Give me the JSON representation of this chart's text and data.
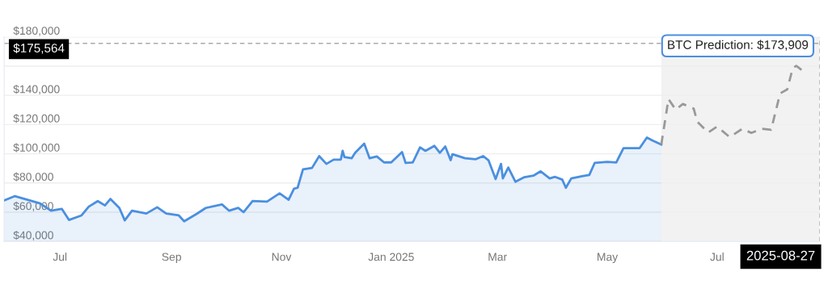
{
  "chart_data": {
    "type": "area",
    "xlim": [
      "2024-05-31",
      "2025-08-27"
    ],
    "ylim": [
      40000,
      180000
    ],
    "xticks": [
      {
        "value": "2024-07-01",
        "label": "Jul"
      },
      {
        "value": "2024-09-01",
        "label": "Sep"
      },
      {
        "value": "2024-11-01",
        "label": "Nov"
      },
      {
        "value": "2025-01-01",
        "label": "Jan 2025"
      },
      {
        "value": "2025-03-01",
        "label": "Mar"
      },
      {
        "value": "2025-05-01",
        "label": "May"
      },
      {
        "value": "2025-07-01",
        "label": "Jul"
      }
    ],
    "yticks": [
      {
        "value": 40000,
        "label": "$40,000"
      },
      {
        "value": 60000,
        "label": "$60,000"
      },
      {
        "value": 80000,
        "label": "$80,000"
      },
      {
        "value": 100000,
        "label": "$100,000"
      },
      {
        "value": 120000,
        "label": "$120,000"
      },
      {
        "value": 140000,
        "label": "$140,000"
      },
      {
        "value": 160000,
        "label": null
      },
      {
        "value": 180000,
        "label": "$180,000"
      }
    ],
    "grid": "y",
    "legend": false,
    "series": [
      {
        "color": "#4a8fe0",
        "line_style": "solid",
        "x": [
          "2024-05-31",
          "2024-06-06",
          "2024-06-13",
          "2024-06-20",
          "2024-06-26",
          "2024-07-02",
          "2024-07-06",
          "2024-07-13",
          "2024-07-17",
          "2024-07-22",
          "2024-07-26",
          "2024-07-29",
          "2024-08-03",
          "2024-08-06",
          "2024-08-10",
          "2024-08-18",
          "2024-08-24",
          "2024-08-29",
          "2024-09-05",
          "2024-09-08",
          "2024-09-15",
          "2024-09-20",
          "2024-09-29",
          "2024-10-03",
          "2024-10-08",
          "2024-10-11",
          "2024-10-16",
          "2024-10-24",
          "2024-10-31",
          "2024-11-05",
          "2024-11-08",
          "2024-11-10",
          "2024-11-13",
          "2024-11-18",
          "2024-11-22",
          "2024-11-26",
          "2024-11-30",
          "2024-12-04",
          "2024-12-05",
          "2024-12-06",
          "2024-12-10",
          "2024-12-12",
          "2024-12-17",
          "2024-12-20",
          "2024-12-24",
          "2024-12-28",
          "2025-01-01",
          "2025-01-07",
          "2025-01-09",
          "2025-01-13",
          "2025-01-17",
          "2025-01-20",
          "2025-01-25",
          "2025-01-28",
          "2025-01-31",
          "2025-02-03",
          "2025-02-04",
          "2025-02-11",
          "2025-02-17",
          "2025-02-21",
          "2025-02-24",
          "2025-02-28",
          "2025-03-03",
          "2025-03-04",
          "2025-03-07",
          "2025-03-11",
          "2025-03-16",
          "2025-03-21",
          "2025-03-25",
          "2025-03-30",
          "2025-04-02",
          "2025-04-06",
          "2025-04-08",
          "2025-04-11",
          "2025-04-17",
          "2025-04-21",
          "2025-04-24",
          "2025-05-01",
          "2025-05-06",
          "2025-05-10",
          "2025-05-19",
          "2025-05-23",
          "2025-05-26",
          "2025-05-31"
        ],
        "values": [
          68000,
          71000,
          68500,
          66000,
          61000,
          62300,
          54700,
          57800,
          63800,
          67600,
          64600,
          69100,
          62900,
          54400,
          61000,
          59100,
          63400,
          59100,
          57800,
          53800,
          58900,
          62900,
          65300,
          61000,
          63000,
          60000,
          67600,
          67200,
          72900,
          68500,
          76100,
          76700,
          89300,
          90300,
          98400,
          93100,
          96000,
          96000,
          102000,
          97800,
          96900,
          100700,
          106900,
          96900,
          98200,
          94100,
          94100,
          101200,
          93700,
          94100,
          104400,
          102000,
          105400,
          100700,
          105000,
          95600,
          99700,
          96900,
          96300,
          98400,
          95600,
          82700,
          93100,
          83100,
          90600,
          80800,
          84000,
          85000,
          88000,
          83100,
          84200,
          82300,
          76700,
          83100,
          84600,
          85500,
          93700,
          94400,
          94100,
          103900,
          103900,
          111100,
          109200,
          106300
        ]
      },
      {
        "type": "line",
        "color": "#999999",
        "line_style": "dashed",
        "x": [
          "2025-05-31",
          "2025-06-04",
          "2025-06-08",
          "2025-06-12",
          "2025-06-18",
          "2025-06-20",
          "2025-06-26",
          "2025-07-01",
          "2025-07-08",
          "2025-07-15",
          "2025-07-20",
          "2025-07-26",
          "2025-07-31",
          "2025-08-05",
          "2025-08-09",
          "2025-08-12",
          "2025-08-14",
          "2025-08-18"
        ],
        "values": [
          106300,
          137500,
          130200,
          134100,
          130900,
          122000,
          114500,
          118600,
          111400,
          117100,
          114300,
          117100,
          116400,
          141300,
          144100,
          158700,
          160200,
          156400
        ]
      }
    ],
    "bands": [
      {
        "axis": "x",
        "from": "2025-05-31",
        "to": "2025-08-27",
        "color": "#f2f2f2"
      }
    ],
    "ref_lines": [
      {
        "axis": "y",
        "value": 175564,
        "label": "$175,564",
        "color": "#aaaaaa",
        "line_style": "dashed"
      },
      {
        "axis": "x",
        "value": "2025-08-27",
        "label": "2025-08-27",
        "color": "#aaaaaa",
        "line_style": "dashed"
      }
    ],
    "annotations": [
      {
        "text": "BTC Prediction: $173,909",
        "x": "2025-08-27",
        "y": 173909
      }
    ]
  }
}
